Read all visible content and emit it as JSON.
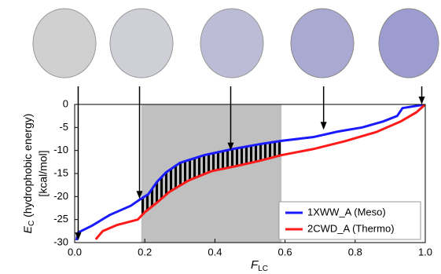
{
  "chart_data": {
    "type": "line",
    "xlabel": {
      "main": "F",
      "sub": "LC"
    },
    "ylabel": {
      "main": "E",
      "sub": "C",
      "rest": " (hydrophobic energy)",
      "unit": "[kcal/mol]"
    },
    "xlim": [
      0,
      1
    ],
    "ylim": [
      -30,
      0
    ],
    "xticks": [
      {
        "value": 0,
        "label": "0.0"
      },
      {
        "value": 0.2,
        "label": "0.2"
      },
      {
        "value": 0.4,
        "label": "0.4"
      },
      {
        "value": 0.6,
        "label": "0.6"
      },
      {
        "value": 0.8,
        "label": "0.8"
      },
      {
        "value": 1,
        "label": "1.0"
      }
    ],
    "yticks": [
      0,
      -5,
      -10,
      -15,
      -20,
      -25,
      -30
    ],
    "shaded_region": [
      0.19,
      0.59
    ],
    "shade_color": "#c0c0c0",
    "legend": "lower right",
    "series": [
      {
        "name": "1XWW_A (Meso)",
        "color": "#1a1aff",
        "x": [
          0.005,
          0.01,
          0.05,
          0.1,
          0.16,
          0.185,
          0.21,
          0.235,
          0.26,
          0.3,
          0.37,
          0.45,
          0.53,
          0.59,
          0.68,
          0.75,
          0.82,
          0.88,
          0.92,
          0.935,
          1.0
        ],
        "values": [
          -29.5,
          -27.8,
          -26.3,
          -24,
          -22,
          -20.7,
          -19.5,
          -16.8,
          -14.8,
          -12.7,
          -11,
          -9.7,
          -8.6,
          -7.9,
          -7.1,
          -5.9,
          -5,
          -3.7,
          -2.5,
          -0.8,
          0
        ]
      },
      {
        "name": "2CWD_A (Thermo)",
        "color": "#ff1a1a",
        "x": [
          0.06,
          0.08,
          0.12,
          0.18,
          0.2,
          0.235,
          0.27,
          0.325,
          0.39,
          0.46,
          0.53,
          0.59,
          0.68,
          0.77,
          0.86,
          0.93,
          0.975,
          1.0
        ],
        "values": [
          -29.3,
          -27.5,
          -26.2,
          -25,
          -23.4,
          -21.3,
          -19,
          -16.5,
          -14.5,
          -13.4,
          -12.2,
          -11,
          -9.7,
          -8,
          -6,
          -3.7,
          -1.7,
          0
        ]
      }
    ],
    "arrows": [
      {
        "x": 0.01,
        "y": -29.5
      },
      {
        "x": 0.185,
        "y": -20.5
      },
      {
        "x": 0.445,
        "y": -10
      },
      {
        "x": 0.71,
        "y": -5.5
      },
      {
        "x": 0.99,
        "y": 0
      }
    ]
  }
}
